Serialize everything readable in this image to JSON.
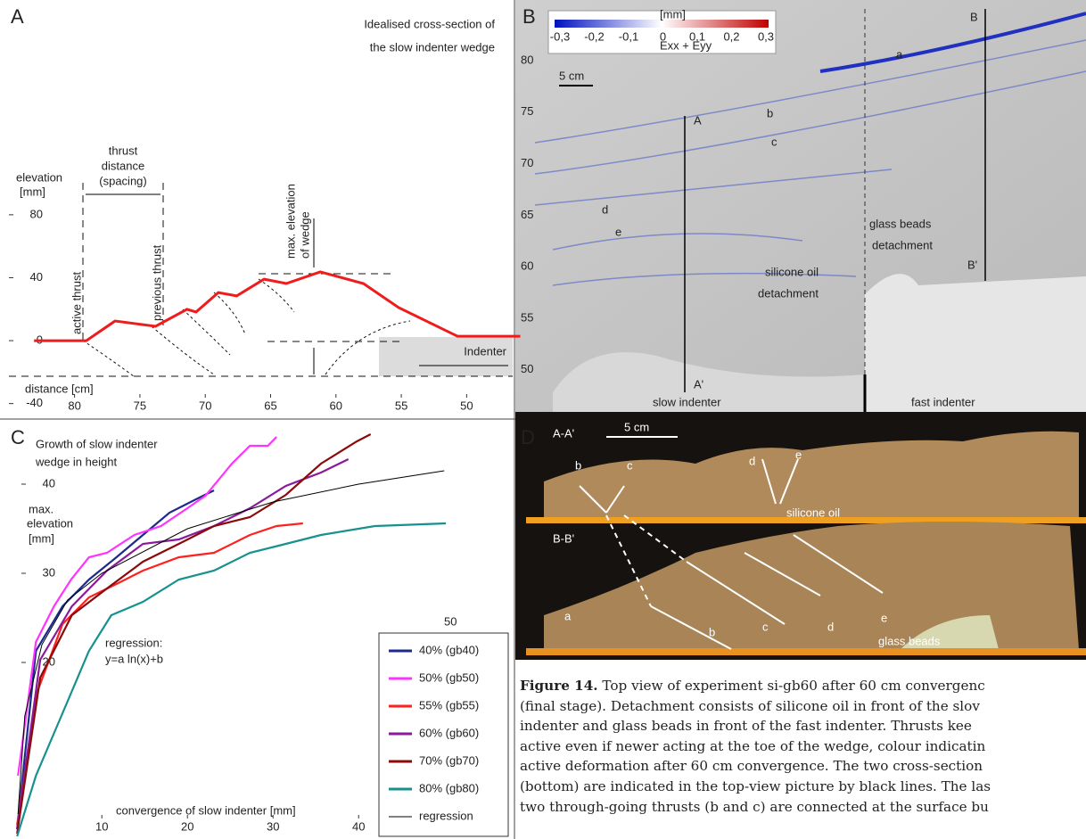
{
  "panel_labels": [
    "A",
    "B",
    "C",
    "D"
  ],
  "chart_data": [
    {
      "type": "line",
      "title": [
        "Idealised cross-section of",
        "the slow indenter wedge"
      ],
      "y_label": [
        "elevation",
        "[mm]"
      ],
      "x_label": "distance [cm]",
      "annotations": {
        "thrust_distance": [
          "thrust",
          "distance",
          "(spacing)"
        ],
        "active_thrust": "active thrust",
        "previous_thrust": "previous thrust",
        "max_elevation": [
          "max. elevation",
          "of wedge"
        ],
        "indenter": "Indenter"
      },
      "x": [
        83.1,
        79.1,
        76.9,
        73.8,
        71.4,
        70.7,
        69.0,
        67.6,
        65.5,
        63.8,
        61.2,
        57.9,
        55.2,
        50.7,
        45.9
      ],
      "values": [
        0,
        0,
        12.5,
        9.1,
        19.9,
        18.2,
        30.6,
        28.4,
        39.1,
        36.3,
        43.7,
        36.3,
        21.0,
        2.8,
        2.8
      ],
      "color": "#ee1c1c",
      "xlim": [
        84,
        46
      ],
      "ylim": [
        -47,
        208
      ],
      "xticks": [
        80,
        75,
        70,
        65,
        60,
        55,
        50
      ],
      "yticks": [
        80,
        40,
        0,
        -40
      ]
    },
    {
      "type": "line",
      "title": [
        "Growth of slow indenter",
        "wedge in height"
      ],
      "y_label": [
        "max.",
        "elevation",
        "[mm]"
      ],
      "x_label": "convergence of slow indenter [mm]",
      "annotation": [
        "regression:",
        "y=a ln(x)+b"
      ],
      "stray_label": "50",
      "xlim": [
        -1.9,
        58
      ],
      "ylim": [
        0.2,
        46.5
      ],
      "xticks": [
        10,
        20,
        30,
        40
      ],
      "yticks": [
        20,
        30,
        40
      ],
      "series": [
        {
          "name": "40% (gb40)",
          "color": "#1c2a8c",
          "x": [
            0.1,
            2.3,
            5.4,
            8.5,
            11.7,
            14.8,
            17.9,
            21.0,
            23.1
          ],
          "values": [
            1.3,
            21.3,
            26.3,
            29.3,
            31.8,
            34.3,
            36.8,
            38.3,
            39.3
          ]
        },
        {
          "name": "50% (gb50)",
          "color": "#ff33ff",
          "x": [
            0.2,
            2.3,
            4.4,
            6.4,
            8.5,
            10.6,
            13.8,
            16.9,
            20,
            22.1,
            25.2,
            27.3,
            29.4,
            30.4
          ],
          "values": [
            7.3,
            22.3,
            26.3,
            29.3,
            31.8,
            32.3,
            34.3,
            35.3,
            37.3,
            38.7,
            42.3,
            44.3,
            44.3,
            45.3
          ]
        },
        {
          "name": "55% (gb55)",
          "color": "#ff2020",
          "x": [
            0.1,
            2.3,
            5.4,
            8.5,
            11.7,
            14.8,
            19.0,
            23.1,
            27.3,
            30.4,
            33.5
          ],
          "values": [
            1.8,
            16.3,
            24.3,
            27.3,
            28.8,
            30.3,
            31.8,
            32.3,
            34.3,
            35.3,
            35.6
          ]
        },
        {
          "name": "60% (gb60)",
          "color": "#8b1a9b",
          "x": [
            0.1,
            2.8,
            6.5,
            10.6,
            14.8,
            19.0,
            23.1,
            27.3,
            31.5,
            35.6,
            38.8
          ],
          "values": [
            1.3,
            20.3,
            26.3,
            30.3,
            33.3,
            33.8,
            35.3,
            37.3,
            39.8,
            41.3,
            42.8
          ]
        },
        {
          "name": "70% (gb70)",
          "color": "#8b0a0a",
          "x": [
            0.1,
            2.8,
            6.5,
            10.6,
            14.8,
            19.0,
            23.1,
            27.3,
            31.5,
            35.6,
            39.8,
            41.4
          ],
          "values": [
            0.8,
            18.3,
            25.3,
            28.3,
            31.3,
            33.3,
            35.3,
            36.3,
            38.8,
            42.3,
            44.8,
            45.6
          ]
        },
        {
          "name": "80% (gb80)",
          "color": "#16918f",
          "x": [
            0.1,
            2.3,
            5.4,
            8.5,
            11.1,
            14.8,
            19.0,
            23.1,
            27.3,
            31.5,
            35.6,
            41.9,
            50.2
          ],
          "values": [
            0.5,
            7.3,
            14.3,
            21.3,
            25.3,
            26.8,
            29.3,
            30.3,
            32.3,
            33.3,
            34.3,
            35.3,
            35.6
          ]
        },
        {
          "name": "regression",
          "color": "#000000",
          "x": [
            0.2,
            1,
            3,
            6,
            10,
            20,
            30,
            40,
            50
          ],
          "values": [
            3,
            14,
            22,
            27,
            30,
            35,
            38,
            40,
            41.5
          ]
        }
      ]
    }
  ],
  "panel_b": {
    "colorbar": {
      "unit": "[mm]",
      "ticks": [
        "-0,3",
        "-0,2",
        "-0,1",
        "0",
        "0,1",
        "0,2",
        "0,3"
      ],
      "label": "Exx + Eyy"
    },
    "scale": "5 cm",
    "scale_labels": [
      "80",
      "75",
      "70",
      "65",
      "60",
      "55",
      "50"
    ],
    "sections": [
      "A",
      "A'",
      "B",
      "B'"
    ],
    "thrusts": [
      "a",
      "b",
      "c",
      "d",
      "e"
    ],
    "glass": [
      "glass beads",
      "detachment"
    ],
    "silicone": [
      "silicone oil",
      "detachment"
    ],
    "slow": "slow indenter",
    "fast": "fast indenter"
  },
  "panel_d": {
    "top": "A-A'",
    "scale": "5 cm",
    "top_labels": [
      "b",
      "c",
      "d",
      "e"
    ],
    "oil": "silicone oil",
    "bottom": "B-B'",
    "bottom_labels": [
      "a",
      "b",
      "c",
      "d",
      "e"
    ],
    "beads": "glass beads"
  },
  "caption": {
    "label": "Figure 14.",
    "lines": [
      " Top view of experiment si-gb60 after 60 cm convergenc",
      "(final stage). Detachment consists of silicone oil in front of the slov",
      "indenter and glass beads in front of the fast indenter. Thrusts kee",
      "active even if newer acting at the toe of the wedge, colour indicatin",
      "active deformation after 60 cm convergence. The two cross-section",
      "(bottom) are indicated in the top-view picture by black lines. The las",
      "two through-going thrusts (b and c) are connected at the surface bu"
    ]
  }
}
